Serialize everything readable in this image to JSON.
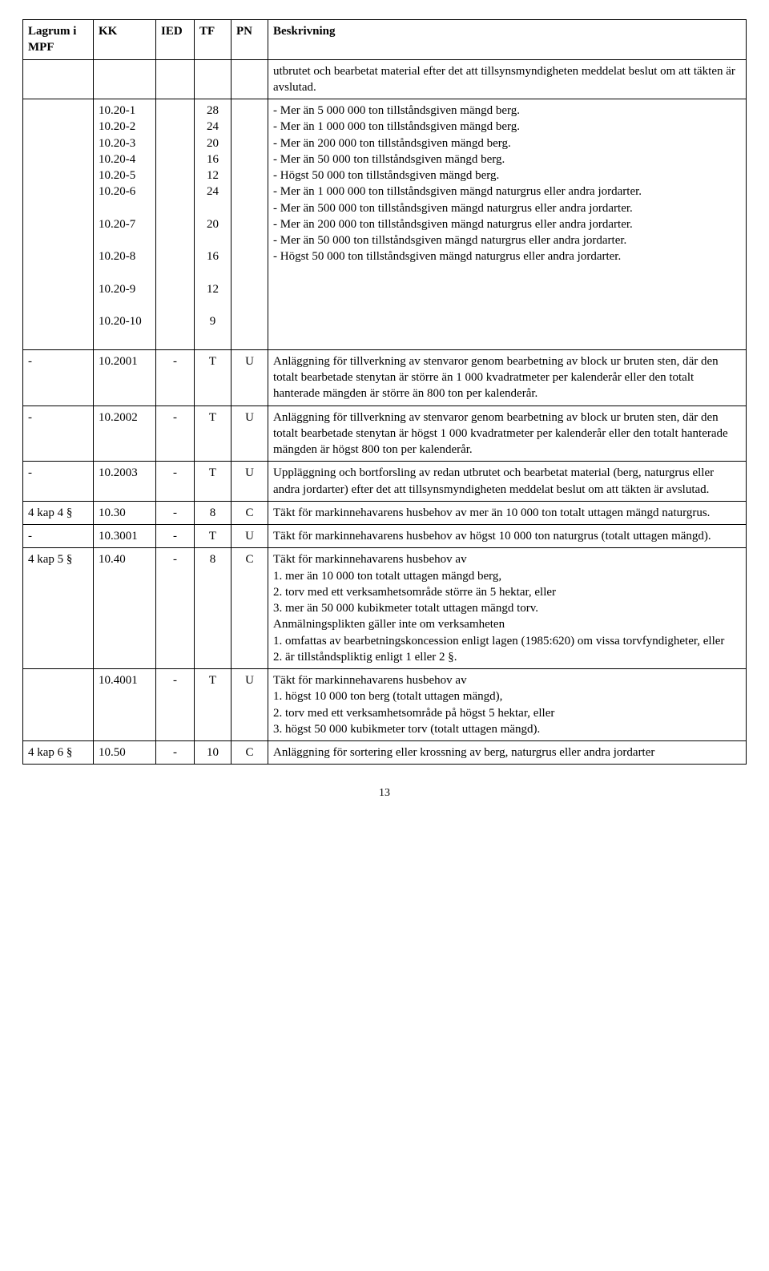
{
  "header": {
    "lagrum": "Lagrum i MPF",
    "kk": "KK",
    "ied": "IED",
    "tf": "TF",
    "pn": "PN",
    "beskr": "Beskrivning"
  },
  "row_intro": {
    "beskr": "utbrutet och bearbetat material efter det att tillsynsmyndigheten meddelat beslut om att täkten är avslutad."
  },
  "row_multi": {
    "items": [
      {
        "code": "10.20-1",
        "tf": "28",
        "desc": "- Mer än 5 000 000 ton tillståndsgiven mängd berg."
      },
      {
        "code": "10.20-2",
        "tf": "24",
        "desc": "- Mer än 1 000 000 ton tillståndsgiven mängd berg."
      },
      {
        "code": "10.20-3",
        "tf": "20",
        "desc": "- Mer än 200 000 ton tillståndsgiven mängd berg."
      },
      {
        "code": "10.20-4",
        "tf": "16",
        "desc": "- Mer än 50 000 ton tillståndsgiven mängd berg."
      },
      {
        "code": "10.20-5",
        "tf": "12",
        "desc": "- Högst 50 000 ton tillståndsgiven mängd berg."
      },
      {
        "code": "10.20-6",
        "tf": "24",
        "desc": "- Mer än 1 000 000 ton tillståndsgiven mängd naturgrus eller andra jordarter."
      },
      {
        "code": "10.20-7",
        "tf": "20",
        "desc": "- Mer än 500 000 ton tillståndsgiven mängd naturgrus eller andra jordarter."
      },
      {
        "code": "10.20-8",
        "tf": "16",
        "desc": "- Mer än 200 000 ton tillståndsgiven mängd naturgrus eller andra jordarter."
      },
      {
        "code": "10.20-9",
        "tf": "12",
        "desc": "- Mer än 50 000 ton tillståndsgiven mängd naturgrus eller andra jordarter."
      },
      {
        "code": "10.20-10",
        "tf": "9",
        "desc": "- Högst 50 000 ton tillståndsgiven mängd naturgrus eller andra jordarter."
      }
    ]
  },
  "rows": [
    {
      "lagrum": "-",
      "kk": "10.2001",
      "ied": "-",
      "tf": "T",
      "pn": "U",
      "beskr": "Anläggning för tillverkning av stenvaror genom bearbetning av block ur bruten sten, där den totalt bearbetade stenytan är större än 1 000 kvadratmeter per kalenderår eller den totalt hanterade mängden är större än 800 ton per kalenderår."
    },
    {
      "lagrum": "-",
      "kk": "10.2002",
      "ied": "-",
      "tf": "T",
      "pn": "U",
      "beskr": "Anläggning för tillverkning av stenvaror genom bearbetning av block ur bruten sten, där den totalt bearbetade stenytan är högst 1 000 kvadratmeter per kalenderår eller den totalt hanterade mängden är högst 800 ton per kalenderår."
    },
    {
      "lagrum": "-",
      "kk": "10.2003",
      "ied": "-",
      "tf": "T",
      "pn": "U",
      "beskr": "Uppläggning och bortforsling av redan utbrutet och bearbetat material (berg, naturgrus eller andra jordarter) efter det att tillsynsmyndigheten meddelat beslut om att täkten är avslutad."
    },
    {
      "lagrum": "4 kap 4 §",
      "kk": "10.30",
      "ied": "-",
      "tf": "8",
      "pn": "C",
      "beskr": "Täkt för markinnehavarens husbehov av mer än 10 000 ton totalt uttagen mängd naturgrus."
    },
    {
      "lagrum": "-",
      "kk": "10.3001",
      "ied": "-",
      "tf": "T",
      "pn": "U",
      "beskr": "Täkt för markinnehavarens husbehov av högst 10 000 ton naturgrus (totalt uttagen mängd)."
    },
    {
      "lagrum": "4 kap 5 §",
      "kk": "10.40",
      "ied": "-",
      "tf": "8",
      "pn": "C",
      "beskr": "Täkt för markinnehavarens husbehov av\n1. mer än 10 000 ton totalt uttagen mängd berg,\n2. torv med ett verksamhetsområde större än 5 hektar, eller\n3. mer än 50 000 kubikmeter totalt uttagen mängd torv.\nAnmälningsplikten gäller inte om verksamheten\n1. omfattas av bearbetningskoncession enligt lagen (1985:620) om vissa torvfyndigheter, eller\n2. är tillståndspliktig enligt 1 eller 2 §."
    },
    {
      "lagrum": "",
      "kk": "10.4001",
      "ied": "-",
      "tf": "T",
      "pn": "U",
      "beskr": "Täkt för markinnehavarens husbehov av\n1. högst 10 000 ton berg (totalt uttagen mängd),\n2. torv med ett verksamhetsområde på högst 5 hektar, eller\n3. högst 50 000 kubikmeter torv (totalt uttagen mängd)."
    },
    {
      "lagrum": "4 kap 6 §",
      "kk": "10.50",
      "ied": "-",
      "tf": "10",
      "pn": "C",
      "beskr": "Anläggning för sortering eller krossning av berg, naturgrus eller andra jordarter"
    }
  ],
  "page_number": "13"
}
